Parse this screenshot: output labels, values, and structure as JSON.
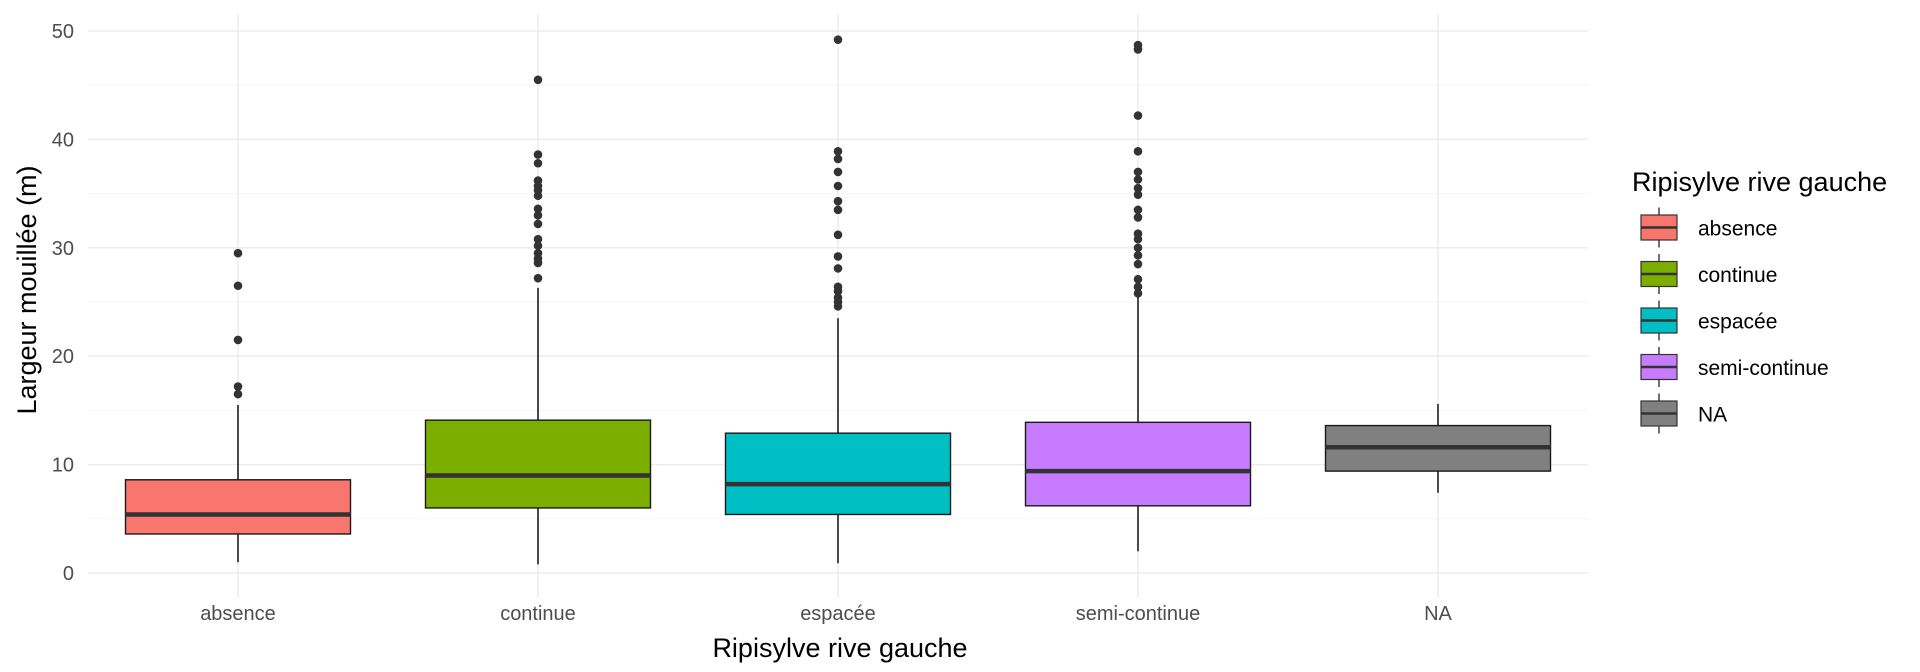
{
  "chart_data": {
    "type": "box",
    "xlabel": "Ripisylve rive gauche",
    "ylabel": "Largeur mouillée (m)",
    "ylim": [
      0,
      50
    ],
    "y_ticks": [
      0,
      10,
      20,
      30,
      40,
      50
    ],
    "grid": true,
    "legend": {
      "title": "Ripisylve rive gauche",
      "position": "right",
      "entries": [
        "absence",
        "continue",
        "espacée",
        "semi-continue",
        "NA"
      ]
    },
    "categories": [
      "absence",
      "continue",
      "espacée",
      "semi-continue",
      "NA"
    ],
    "colors": [
      "#F8766D",
      "#7CAE00",
      "#00BFC4",
      "#C77CFF",
      "#808080"
    ],
    "boxes": [
      {
        "category": "absence",
        "whisker_low": 1.0,
        "q1": 3.6,
        "median": 5.4,
        "q3": 8.6,
        "whisker_high": 15.5,
        "outliers": [
          16.5,
          17.2,
          21.5,
          26.5,
          29.5
        ]
      },
      {
        "category": "continue",
        "whisker_low": 0.8,
        "q1": 6.0,
        "median": 9.0,
        "q3": 14.1,
        "whisker_high": 26.3,
        "outliers": [
          27.2,
          28.6,
          29.0,
          29.5,
          30.2,
          30.8,
          32.2,
          33.0,
          33.6,
          34.8,
          35.3,
          35.7,
          36.2,
          37.8,
          38.6,
          45.5
        ]
      },
      {
        "category": "espacée",
        "whisker_low": 0.9,
        "q1": 5.4,
        "median": 8.2,
        "q3": 12.9,
        "whisker_high": 23.5,
        "outliers": [
          24.6,
          25.0,
          25.4,
          26.0,
          26.4,
          28.1,
          29.2,
          31.2,
          33.5,
          34.3,
          35.7,
          37.0,
          38.2,
          38.9,
          49.2
        ]
      },
      {
        "category": "semi-continue",
        "whisker_low": 2.0,
        "q1": 6.2,
        "median": 9.4,
        "q3": 13.9,
        "whisker_high": 25.5,
        "outliers": [
          25.8,
          26.4,
          27.1,
          28.5,
          29.3,
          30.0,
          30.8,
          31.3,
          32.8,
          33.5,
          34.9,
          35.5,
          36.3,
          37.0,
          38.9,
          42.2,
          48.3,
          48.7
        ]
      },
      {
        "category": "NA",
        "whisker_low": 7.4,
        "q1": 9.4,
        "median": 11.6,
        "q3": 13.6,
        "whisker_high": 15.6,
        "outliers": []
      }
    ]
  }
}
